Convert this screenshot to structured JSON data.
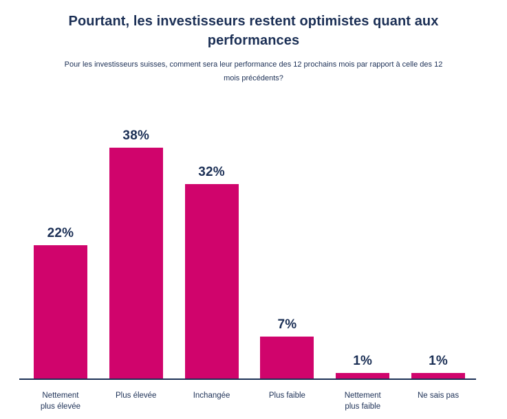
{
  "chart_data": {
    "type": "bar",
    "title": "Pourtant, les investisseurs restent optimistes quant aux performances",
    "subtitle": "Pour les investisseurs suisses, comment sera leur performance des 12 prochains mois par rapport à celle des 12 mois précédents?",
    "categories": [
      "Nettement plus élevée",
      "Plus élevée",
      "Inchangée",
      "Plus faible",
      "Nettement plus faible",
      "Ne sais pas"
    ],
    "values": [
      22,
      38,
      32,
      7,
      1,
      1
    ],
    "value_labels": [
      "22%",
      "38%",
      "32%",
      "7%",
      "1%",
      "1%"
    ],
    "xlabel": "",
    "ylabel": "",
    "ylim": [
      0,
      40
    ],
    "grid": false,
    "legend": "none",
    "bar_color": "#d0046c",
    "text_color": "#1b2f55",
    "axis_color": "#1b2f55",
    "background_color": "#ffffff"
  }
}
